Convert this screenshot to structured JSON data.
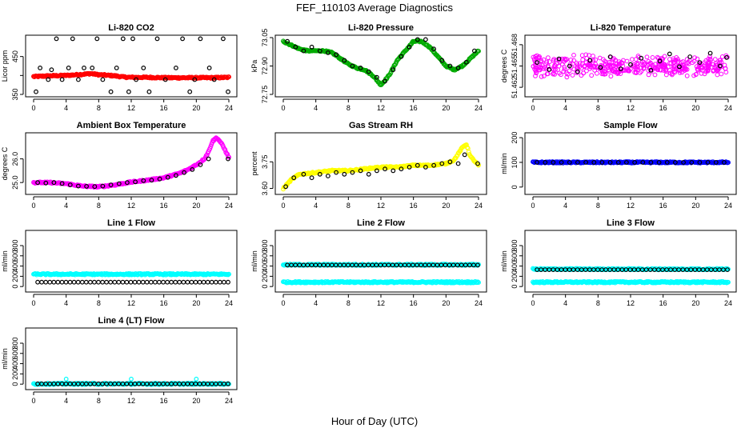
{
  "figure": {
    "title": "FEF_110103  Average Diagnostics",
    "xlabel": "Hour of Day (UTC)"
  },
  "chart_data": [
    {
      "type": "scatter",
      "title": "Li-820 CO2",
      "ylabel": "Licor ppm",
      "xlim": [
        0,
        24
      ],
      "ylim": [
        350,
        500
      ],
      "xticks": [
        0,
        4,
        8,
        12,
        16,
        20,
        24
      ],
      "yticks": [
        350,
        400,
        450
      ],
      "ytick_labels": [
        "350",
        "",
        "450"
      ],
      "series": [
        {
          "color": "#ff0000",
          "style": "dense-band",
          "x": [
            0,
            2,
            4,
            6,
            7,
            8,
            10,
            11,
            12,
            14,
            16,
            18,
            20,
            22,
            24
          ],
          "y": [
            397,
            399,
            400,
            403,
            405,
            402,
            399,
            396,
            395,
            395,
            394,
            394,
            394,
            394,
            395
          ]
        },
        {
          "color": "#000000",
          "style": "open-circle",
          "x": [
            0.3,
            2.2,
            2.8,
            3.5,
            4.3,
            4.8,
            5.5,
            7.2,
            7.8,
            8.5,
            10.2,
            11.0,
            11.7,
            12.6,
            13.5,
            15.2,
            16.2,
            17.5,
            18.3,
            19.8,
            20.5,
            21.6,
            23.3,
            23.9,
            1.8,
            9.5,
            14.2,
            6.2,
            22.2,
            0.8,
            12.2,
            19.2
          ],
          "y": [
            357,
            415,
            497,
            389,
            420,
            497,
            389,
            420,
            497,
            389,
            420,
            497,
            357,
            389,
            420,
            497,
            389,
            420,
            497,
            389,
            497,
            420,
            497,
            357,
            389,
            357,
            357,
            420,
            389,
            420,
            497,
            357
          ]
        }
      ]
    },
    {
      "type": "scatter",
      "title": "Li-820 Pressure",
      "ylabel": "kPa",
      "xlim": [
        0,
        24
      ],
      "ylim": [
        72.75,
        73.05
      ],
      "xticks": [
        0,
        4,
        8,
        12,
        16,
        20,
        24
      ],
      "yticks": [
        72.75,
        72.9,
        73.05
      ],
      "ytick_labels": [
        "72.75",
        "72.90",
        "73.05"
      ],
      "series": [
        {
          "color": "#00aa00",
          "style": "dense-band",
          "x": [
            0,
            1,
            2,
            3,
            4,
            5,
            6,
            7,
            8,
            9,
            10,
            11,
            12,
            13,
            14,
            15,
            16,
            17,
            18,
            19,
            20,
            21,
            22,
            23,
            24
          ],
          "y": [
            73.03,
            73.01,
            72.99,
            72.98,
            72.98,
            72.98,
            72.97,
            72.94,
            72.91,
            72.89,
            72.88,
            72.85,
            72.8,
            72.85,
            72.93,
            72.98,
            73.03,
            73.03,
            73.0,
            72.95,
            72.9,
            72.88,
            72.9,
            72.94,
            72.98
          ]
        },
        {
          "color": "#000000",
          "style": "open-circle",
          "x": [
            0.5,
            1.5,
            2.5,
            3.5,
            4.5,
            5.5,
            6.5,
            7.5,
            8.5,
            9.5,
            10.5,
            11.5,
            12.5,
            13.5,
            14.5,
            15.5,
            16.5,
            17.5,
            18.5,
            19.5,
            20.5,
            21.5,
            22.5,
            23.5
          ],
          "y": [
            73.03,
            73.0,
            72.98,
            73.0,
            72.98,
            72.97,
            72.96,
            72.93,
            72.9,
            72.89,
            72.87,
            72.84,
            72.82,
            72.88,
            72.95,
            73.0,
            73.04,
            73.04,
            72.99,
            72.93,
            72.9,
            72.89,
            72.92,
            72.98
          ]
        }
      ]
    },
    {
      "type": "scatter",
      "title": "Li-820 Temperature",
      "ylabel": "degrees C",
      "xlim": [
        0,
        24
      ],
      "ylim": [
        51.461,
        51.469
      ],
      "xticks": [
        0,
        4,
        8,
        12,
        16,
        20,
        24
      ],
      "yticks": [
        51.462,
        51.465,
        51.468
      ],
      "ytick_labels": [
        "51.462",
        "51.465",
        "51.468"
      ],
      "series": [
        {
          "color": "#ff00ff",
          "style": "scatter-cloud",
          "x": [
            0,
            24
          ],
          "y": [
            51.465,
            51.465
          ],
          "spread": 0.003
        },
        {
          "color": "#000000",
          "style": "open-circle",
          "x": [
            0.5,
            2.0,
            3.2,
            4.5,
            5.5,
            7.0,
            8.3,
            9.5,
            10.8,
            12.0,
            13.3,
            14.5,
            15.6,
            16.8,
            18.0,
            19.3,
            20.5,
            21.8,
            23.0,
            23.8
          ],
          "y": [
            51.4655,
            51.4645,
            51.466,
            51.465,
            51.4642,
            51.4658,
            51.4648,
            51.4663,
            51.4646,
            51.4652,
            51.4661,
            51.4644,
            51.4657,
            51.4667,
            51.4649,
            51.4663,
            51.4655,
            51.4668,
            51.465,
            51.4662
          ]
        }
      ]
    },
    {
      "type": "scatter",
      "title": "Ambient Box Temperature",
      "ylabel": "degrees C",
      "xlim": [
        0,
        24
      ],
      "ylim": [
        24.6,
        27.0
      ],
      "xticks": [
        0,
        4,
        8,
        12,
        16,
        20,
        24
      ],
      "yticks": [
        25.0,
        26.0
      ],
      "ytick_labels": [
        "25.0",
        "26.0"
      ],
      "series": [
        {
          "color": "#ff00ff",
          "style": "dense-band",
          "x": [
            0,
            2,
            4,
            6,
            8,
            10,
            12,
            14,
            16,
            18,
            19,
            20,
            21,
            21.5,
            22,
            22.5,
            23,
            23.5,
            24
          ],
          "y": [
            25.0,
            25.0,
            24.95,
            24.85,
            24.82,
            24.9,
            25.02,
            25.1,
            25.2,
            25.4,
            25.55,
            25.75,
            26.0,
            26.3,
            26.75,
            26.9,
            26.7,
            26.4,
            26.05
          ]
        },
        {
          "color": "#000000",
          "style": "open-circle",
          "x": [
            0.5,
            1.5,
            2.5,
            3.5,
            4.5,
            5.5,
            6.5,
            7.5,
            8.5,
            9.5,
            10.5,
            11.5,
            12.5,
            13.5,
            14.5,
            15.5,
            16.5,
            17.5,
            18.5,
            19.5,
            20.5,
            21.5,
            23.9
          ],
          "y": [
            25.0,
            24.98,
            25.0,
            24.96,
            24.9,
            24.85,
            24.84,
            24.83,
            24.85,
            24.9,
            24.95,
            25.0,
            25.03,
            25.08,
            25.1,
            25.15,
            25.22,
            25.3,
            25.42,
            25.55,
            25.75,
            26.0,
            26.0
          ]
        }
      ]
    },
    {
      "type": "scatter",
      "title": "Gas Stream RH",
      "ylabel": "percent",
      "xlim": [
        0,
        24
      ],
      "ylim": [
        3.58,
        3.9
      ],
      "xticks": [
        0,
        4,
        8,
        12,
        16,
        20,
        24
      ],
      "yticks": [
        3.6,
        3.75
      ],
      "ytick_labels": [
        "3.60",
        "3.75"
      ],
      "series": [
        {
          "color": "#ffff00",
          "style": "dense-band",
          "x": [
            0,
            1,
            2,
            4,
            6,
            8,
            10,
            12,
            14,
            16,
            18,
            20,
            21,
            22,
            22.5,
            23,
            24
          ],
          "y": [
            3.6,
            3.65,
            3.68,
            3.69,
            3.7,
            3.7,
            3.71,
            3.72,
            3.72,
            3.73,
            3.73,
            3.74,
            3.76,
            3.83,
            3.85,
            3.78,
            3.73
          ]
        },
        {
          "color": "#000000",
          "style": "open-circle",
          "x": [
            0.3,
            1.3,
            2.5,
            3.5,
            4.5,
            5.5,
            6.5,
            7.5,
            8.5,
            9.5,
            10.5,
            11.5,
            12.5,
            13.5,
            14.5,
            15.5,
            16.5,
            17.5,
            18.5,
            19.5,
            20.5,
            21.5,
            22.3,
            23.9
          ],
          "y": [
            3.61,
            3.66,
            3.68,
            3.66,
            3.68,
            3.67,
            3.69,
            3.68,
            3.69,
            3.7,
            3.68,
            3.7,
            3.71,
            3.7,
            3.71,
            3.72,
            3.73,
            3.72,
            3.73,
            3.74,
            3.75,
            3.74,
            3.79,
            3.74
          ]
        }
      ]
    },
    {
      "type": "scatter",
      "title": "Sample Flow",
      "ylabel": "ml/min",
      "xlim": [
        0,
        24
      ],
      "ylim": [
        -20,
        210
      ],
      "xticks": [
        0,
        4,
        8,
        12,
        16,
        20,
        24
      ],
      "yticks": [
        0,
        100,
        200
      ],
      "ytick_labels": [
        "0",
        "100",
        "200"
      ],
      "series": [
        {
          "color": "#0000ff",
          "style": "dense-band",
          "x": [
            0,
            24
          ],
          "y": [
            100,
            100
          ]
        },
        {
          "color": "#000000",
          "style": "open-circle",
          "x": [
            0.5,
            23.5
          ],
          "y": [
            100,
            100
          ],
          "count": 24
        }
      ]
    },
    {
      "type": "scatter",
      "title": "Line 1 Flow",
      "ylabel": "ml/min",
      "xlim": [
        0,
        24
      ],
      "ylim": [
        -60,
        1050
      ],
      "xticks": [
        0,
        4,
        8,
        12,
        16,
        20,
        24
      ],
      "yticks": [
        0,
        200,
        400,
        600,
        800
      ],
      "ytick_labels": [
        "0",
        "200",
        "400",
        "600",
        "800"
      ],
      "series": [
        {
          "color": "#00ffff",
          "style": "dense-band",
          "x": [
            0,
            24
          ],
          "y": [
            240,
            240
          ]
        },
        {
          "color": "#000000",
          "style": "open-circle",
          "x": [
            0.5,
            23.9
          ],
          "y": [
            85,
            85
          ],
          "count": 48
        }
      ]
    },
    {
      "type": "scatter",
      "title": "Line 2 Flow",
      "ylabel": "ml/min",
      "xlim": [
        0,
        24
      ],
      "ylim": [
        -60,
        1050
      ],
      "xticks": [
        0,
        4,
        8,
        12,
        16,
        20,
        24
      ],
      "yticks": [
        0,
        200,
        400,
        600,
        800
      ],
      "ytick_labels": [
        "0",
        "200",
        "400",
        "600",
        "800"
      ],
      "series": [
        {
          "color": "#00ffff",
          "style": "dense-band",
          "x": [
            0,
            24
          ],
          "y": [
            85,
            85
          ]
        },
        {
          "color": "#00ffff",
          "style": "dense-band",
          "x": [
            0,
            24
          ],
          "y": [
            425,
            425
          ]
        },
        {
          "color": "#000000",
          "style": "open-circle",
          "x": [
            0.5,
            23.9
          ],
          "y": [
            420,
            420
          ],
          "count": 48
        }
      ]
    },
    {
      "type": "scatter",
      "title": "Line 3 Flow",
      "ylabel": "ml/min",
      "xlim": [
        0,
        24
      ],
      "ylim": [
        -60,
        1050
      ],
      "xticks": [
        0,
        4,
        8,
        12,
        16,
        20,
        24
      ],
      "yticks": [
        0,
        200,
        400,
        600,
        800
      ],
      "ytick_labels": [
        "0",
        "200",
        "400",
        "600",
        "800"
      ],
      "series": [
        {
          "color": "#00ffff",
          "style": "dense-band",
          "x": [
            0,
            24
          ],
          "y": [
            85,
            85
          ]
        },
        {
          "color": "#00ffff",
          "style": "dense-band",
          "x": [
            0,
            24
          ],
          "y": [
            340,
            340
          ]
        },
        {
          "color": "#000000",
          "style": "open-circle",
          "x": [
            0.5,
            23.9
          ],
          "y": [
            330,
            330
          ],
          "count": 48
        }
      ]
    },
    {
      "type": "scatter",
      "title": "Line 4 (LT) Flow",
      "ylabel": "ml/min",
      "xlim": [
        0,
        24
      ],
      "ylim": [
        -60,
        1050
      ],
      "xticks": [
        0,
        4,
        8,
        12,
        16,
        20,
        24
      ],
      "yticks": [
        0,
        200,
        400,
        600,
        800
      ],
      "ytick_labels": [
        "0",
        "200",
        "400",
        "600",
        "800"
      ],
      "series": [
        {
          "color": "#00ffff",
          "style": "dense-band",
          "x": [
            0,
            24
          ],
          "y": [
            5,
            5
          ]
        },
        {
          "color": "#000000",
          "style": "open-circle",
          "x": [
            0.5,
            23.9
          ],
          "y": [
            5,
            5
          ],
          "count": 48
        },
        {
          "color": "#00ffff",
          "style": "open-circle",
          "x": [
            4,
            12,
            20
          ],
          "y": [
            100,
            100,
            100
          ]
        }
      ]
    }
  ]
}
